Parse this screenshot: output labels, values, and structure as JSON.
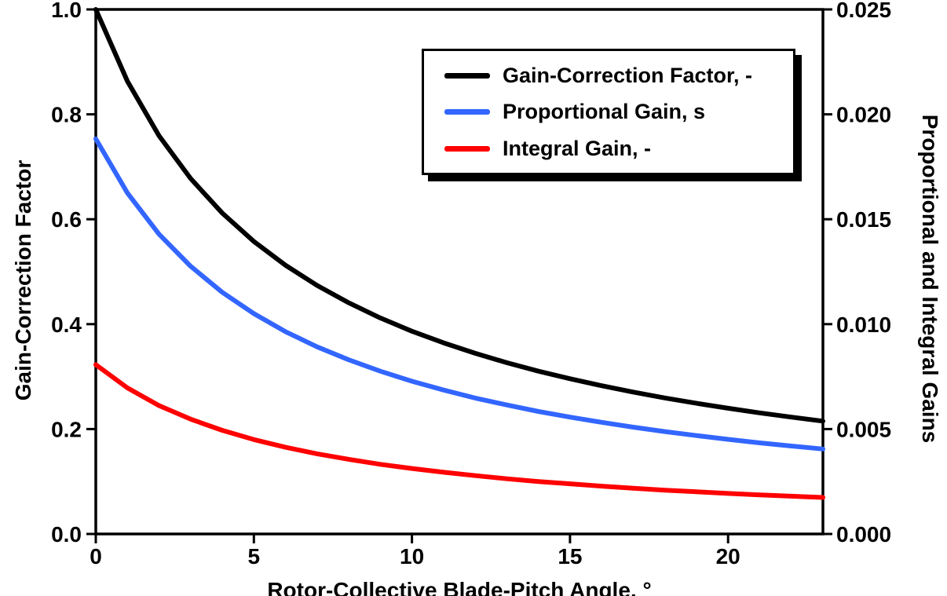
{
  "chart_data": {
    "type": "line",
    "title": "",
    "grid": false,
    "legend_position": "top-right-inside",
    "x_axis": {
      "label": "Rotor-Collective Blade-Pitch Angle, °",
      "range": [
        0,
        23
      ],
      "tick_values": [
        0,
        5,
        10,
        15,
        20
      ],
      "tick_labels": [
        "0",
        "5",
        "10",
        "15",
        "20"
      ]
    },
    "y_axis_left": {
      "label": "Gain-Correction Factor",
      "range": [
        0,
        1
      ],
      "tick_values": [
        0,
        0.2,
        0.4,
        0.6,
        0.8,
        1.0
      ],
      "tick_labels": [
        "0.0",
        "0.2",
        "0.4",
        "0.6",
        "0.8",
        "1.0"
      ]
    },
    "y_axis_right": {
      "label": "Proportional and Integral Gains",
      "range": [
        0,
        0.025
      ],
      "tick_values": [
        0,
        0.005,
        0.01,
        0.015,
        0.02,
        0.025
      ],
      "tick_labels": [
        "0.000",
        "0.005",
        "0.010",
        "0.015",
        "0.020",
        "0.025"
      ]
    },
    "x": [
      0,
      1,
      2,
      3,
      4,
      5,
      6,
      7,
      8,
      9,
      10,
      11,
      12,
      13,
      14,
      15,
      16,
      17,
      18,
      19,
      20,
      21,
      22,
      23
    ],
    "series": [
      {
        "name": "Gain-Correction Factor, -",
        "color": "#000000",
        "axis": "left",
        "values": [
          1.0,
          0.863,
          0.7591,
          0.6775,
          0.6118,
          0.5576,
          0.5123,
          0.4738,
          0.4407,
          0.4119,
          0.3866,
          0.3643,
          0.3444,
          0.3265,
          0.3104,
          0.2959,
          0.2826,
          0.2705,
          0.2593,
          0.2491,
          0.2396,
          0.2308,
          0.2227,
          0.2151
        ]
      },
      {
        "name": "Proportional Gain, s",
        "color": "#3366FF",
        "axis": "right",
        "values": [
          0.01883,
          0.01625,
          0.01429,
          0.01276,
          0.01152,
          0.0105,
          0.00964,
          0.00892,
          0.0083,
          0.00776,
          0.00728,
          0.00686,
          0.00648,
          0.00615,
          0.00584,
          0.00557,
          0.00532,
          0.00509,
          0.00488,
          0.00469,
          0.00451,
          0.00434,
          0.00419,
          0.00405
        ]
      },
      {
        "name": "Integral Gain, -",
        "color": "#FF0000",
        "axis": "right",
        "values": [
          0.00807,
          0.00696,
          0.00612,
          0.00547,
          0.00494,
          0.0045,
          0.00413,
          0.00382,
          0.00356,
          0.00332,
          0.00312,
          0.00294,
          0.00278,
          0.00263,
          0.0025,
          0.00239,
          0.00228,
          0.00218,
          0.00209,
          0.00201,
          0.00193,
          0.00186,
          0.0018,
          0.00174
        ]
      }
    ]
  }
}
